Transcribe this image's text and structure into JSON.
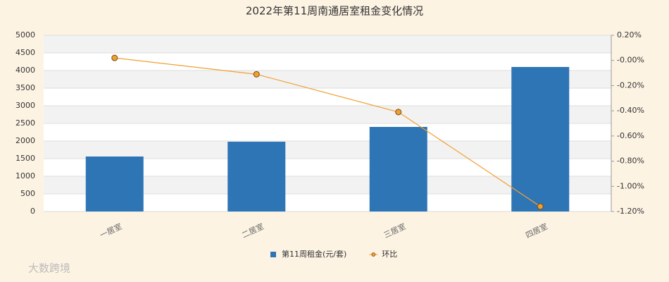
{
  "chart_data": {
    "type": "bar-line",
    "title": "2022年第11周南通居室租金变化情况",
    "categories": [
      "一居室",
      "二居室",
      "三居室",
      "四居室"
    ],
    "series": [
      {
        "name": "第11周租金(元/套)",
        "color": "#2e75b6",
        "values": [
          1560,
          1980,
          2400,
          4100
        ]
      },
      {
        "name": "环比",
        "color": "#f0a030",
        "axis": "y2",
        "values": [
          0.02,
          -0.11,
          -0.41,
          -1.16
        ]
      }
    ],
    "ylim": [
      0,
      5000
    ],
    "yticks": [
      0,
      500,
      1000,
      1500,
      2000,
      2500,
      3000,
      3500,
      4000,
      4500,
      5000
    ],
    "y2lim": [
      -1.2,
      0.2
    ],
    "y2ticks": [
      {
        "value": -1.2,
        "label": "-1.20%"
      },
      {
        "value": -1.0,
        "label": "-1.00%"
      },
      {
        "value": -0.8,
        "label": "-0.80%"
      },
      {
        "value": -0.6,
        "label": "-0.60%"
      },
      {
        "value": -0.4,
        "label": "-0.40%"
      },
      {
        "value": -0.2,
        "label": "-0.20%"
      },
      {
        "value": 0,
        "label": "-0.00%"
      },
      {
        "value": 0.2,
        "label": "0.20%"
      }
    ],
    "grid": true,
    "legend": "bottom",
    "watermark": "大数跨境"
  }
}
